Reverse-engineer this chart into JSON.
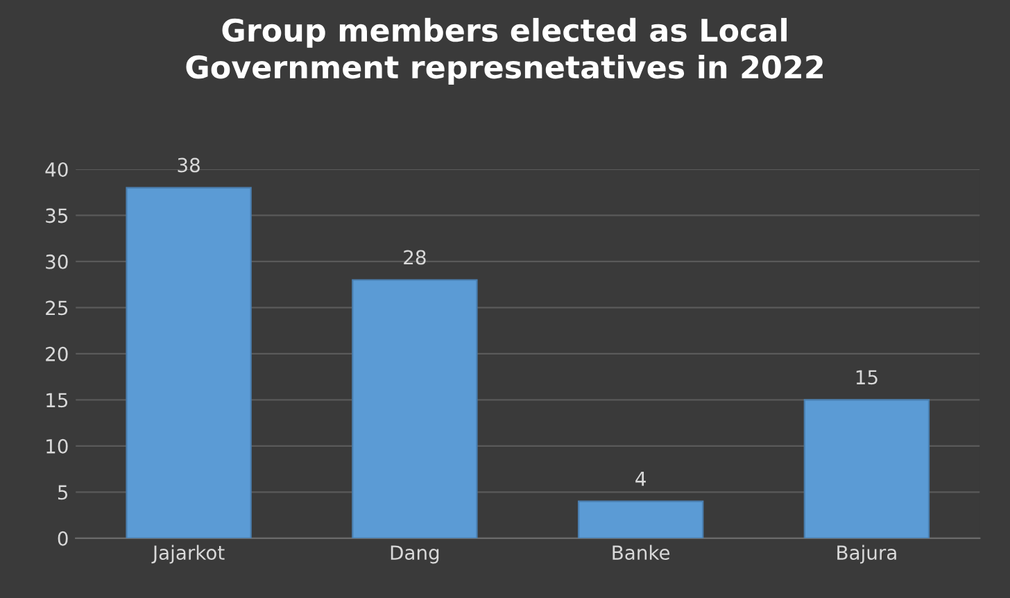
{
  "chart_data": {
    "type": "bar",
    "title": "Group members elected as Local\nGovernment represnetatives in 2022",
    "categories": [
      "Jajarkot",
      "Dang",
      "Banke",
      "Bajura"
    ],
    "values": [
      38,
      28,
      4,
      15
    ],
    "color": "#5b9bd5",
    "ylim": [
      0,
      40
    ],
    "yticks": [
      0,
      5,
      10,
      15,
      20,
      25,
      30,
      35,
      40
    ],
    "grid": "y",
    "data_labels": true
  }
}
